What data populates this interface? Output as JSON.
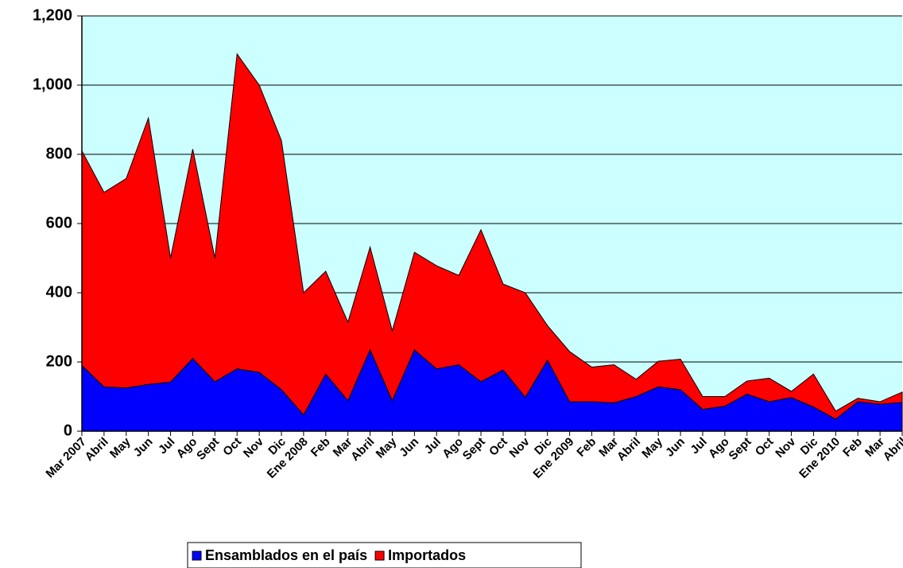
{
  "chart_data": {
    "type": "stacked_area",
    "categories": [
      "Mar 2007",
      "Abril",
      "May",
      "Jun",
      "Jul",
      "Ago",
      "Sept",
      "Oct",
      "Nov",
      "Dic",
      "Ene 2008",
      "Feb",
      "Mar",
      "Abril",
      "May",
      "Jun",
      "Jul",
      "Ago",
      "Sept",
      "Oct",
      "Nov",
      "Dic",
      "Ene 2009",
      "Feb",
      "Mar",
      "Abril",
      "May",
      "Jun",
      "Jul",
      "Ago",
      "Sept",
      "Oct",
      "Nov",
      "Dic",
      "Ene 2010",
      "Feb",
      "Mar",
      "Abril"
    ],
    "series": [
      {
        "name": "Ensamblados en el país",
        "color": "#0000ff",
        "values": [
          190,
          128,
          125,
          135,
          142,
          210,
          143,
          180,
          170,
          120,
          47,
          165,
          88,
          235,
          88,
          235,
          180,
          192,
          143,
          177,
          98,
          205,
          85,
          85,
          82,
          100,
          128,
          120,
          63,
          72,
          107,
          85,
          97,
          70,
          35,
          85,
          78,
          83
        ]
      },
      {
        "name": "Importados",
        "color": "#ff0000",
        "values": [
          620,
          562,
          605,
          770,
          358,
          605,
          357,
          910,
          830,
          720,
          353,
          297,
          227,
          297,
          202,
          282,
          298,
          258,
          439,
          248,
          302,
          100,
          145,
          100,
          110,
          50,
          74,
          88,
          37,
          28,
          38,
          68,
          18,
          95,
          23,
          10,
          7,
          30
        ]
      }
    ],
    "ylim": [
      0,
      1200
    ],
    "yticks": [
      0,
      200,
      400,
      600,
      800,
      {
        "value": 1000,
        "label": "1,000"
      },
      {
        "value": 1200,
        "label": "1,200"
      }
    ],
    "grid": true,
    "plot_background": "#ccffff",
    "legend": "bottom"
  }
}
